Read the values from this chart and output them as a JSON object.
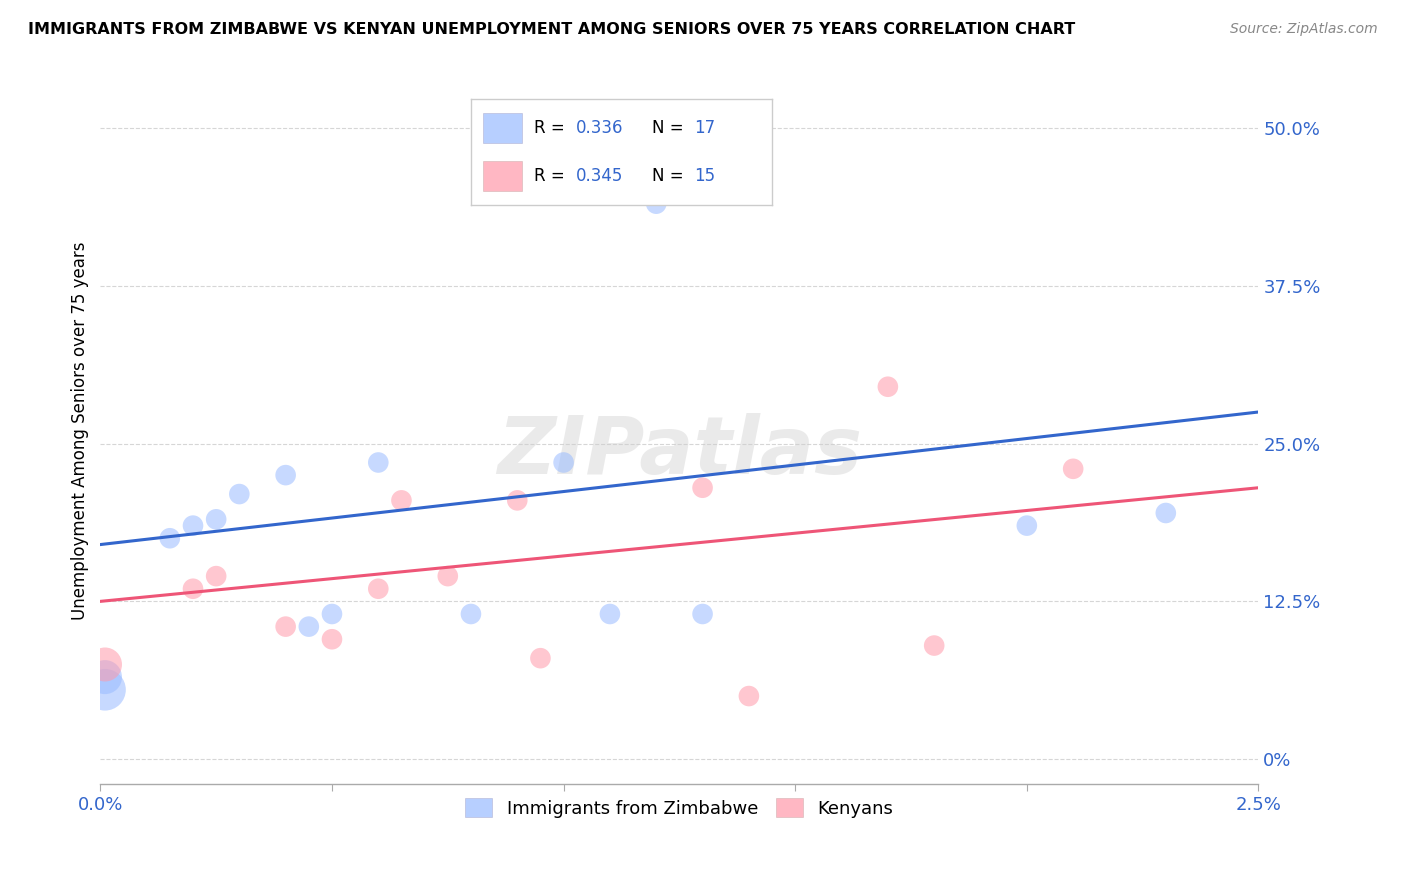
{
  "title": "IMMIGRANTS FROM ZIMBABWE VS KENYAN UNEMPLOYMENT AMONG SENIORS OVER 75 YEARS CORRELATION CHART",
  "source": "Source: ZipAtlas.com",
  "ylabel": "Unemployment Among Seniors over 75 years",
  "ytick_labels": [
    "0%",
    "12.5%",
    "25.0%",
    "37.5%",
    "50.0%"
  ],
  "ytick_values": [
    0.0,
    0.125,
    0.25,
    0.375,
    0.5
  ],
  "xlim": [
    0.0,
    0.025
  ],
  "ylim": [
    -0.02,
    0.54
  ],
  "blue_color": "#99bbff",
  "pink_color": "#ff99aa",
  "blue_line_color": "#3366cc",
  "pink_line_color": "#ee5577",
  "blue_scatter_x": [
    0.0001,
    0.0001,
    0.0015,
    0.002,
    0.0025,
    0.003,
    0.004,
    0.0045,
    0.005,
    0.006,
    0.008,
    0.01,
    0.011,
    0.012,
    0.013,
    0.02,
    0.023
  ],
  "blue_scatter_y": [
    0.055,
    0.065,
    0.175,
    0.185,
    0.19,
    0.21,
    0.225,
    0.105,
    0.115,
    0.235,
    0.115,
    0.235,
    0.115,
    0.44,
    0.115,
    0.185,
    0.195
  ],
  "blue_scatter_sizes": [
    900,
    600,
    220,
    220,
    220,
    220,
    220,
    220,
    220,
    220,
    220,
    220,
    220,
    220,
    220,
    220,
    220
  ],
  "pink_scatter_x": [
    0.0001,
    0.002,
    0.0025,
    0.004,
    0.005,
    0.006,
    0.0065,
    0.0075,
    0.009,
    0.0095,
    0.013,
    0.014,
    0.017,
    0.018,
    0.021
  ],
  "pink_scatter_y": [
    0.075,
    0.135,
    0.145,
    0.105,
    0.095,
    0.135,
    0.205,
    0.145,
    0.205,
    0.08,
    0.215,
    0.05,
    0.295,
    0.09,
    0.23
  ],
  "pink_scatter_sizes": [
    600,
    220,
    220,
    220,
    220,
    220,
    220,
    220,
    220,
    220,
    220,
    220,
    220,
    220,
    220
  ],
  "blue_line_x": [
    0.0,
    0.025
  ],
  "blue_line_y": [
    0.17,
    0.275
  ],
  "pink_line_x": [
    0.0,
    0.025
  ],
  "pink_line_y": [
    0.125,
    0.215
  ],
  "watermark": "ZIPatlas",
  "legend_label_blue": "Immigrants from Zimbabwe",
  "legend_label_pink": "Kenyans",
  "blue_R_label": "R = ",
  "blue_R_val": "0.336",
  "blue_N_label": "N = ",
  "blue_N_val": "17",
  "pink_R_label": "R = ",
  "pink_R_val": "0.345",
  "pink_N_label": "N = ",
  "pink_N_val": "15"
}
